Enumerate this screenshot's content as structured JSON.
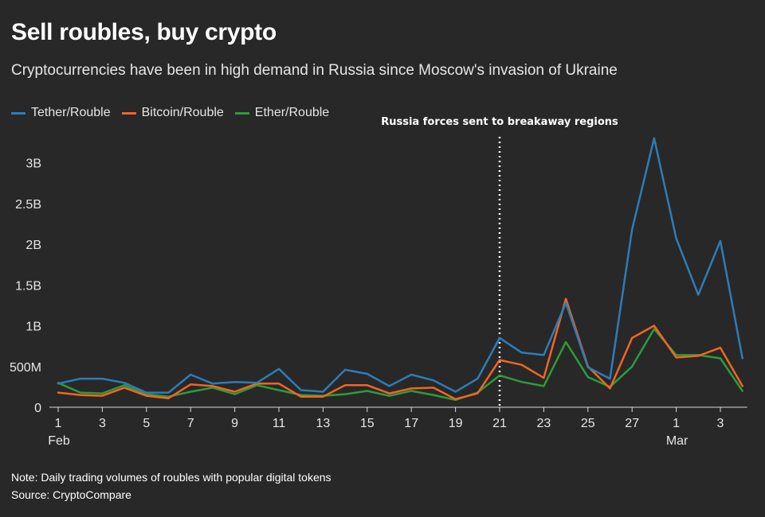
{
  "header": {
    "title": "Sell roubles, buy crypto",
    "subtitle": "Cryptocurrencies have been in high demand in Russia since Moscow's invasion of Ukraine"
  },
  "footer": {
    "note": "Note: Daily trading volumes of roubles with popular digital tokens",
    "source": "Source: CryptoCompare"
  },
  "chart_data": {
    "type": "line",
    "title": "Sell roubles, buy crypto",
    "xlabel": "",
    "ylabel": "",
    "ylim": [
      0,
      3.5
    ],
    "y_unit": "billions of roubles",
    "y_ticks": [
      0,
      0.5,
      1,
      1.5,
      2,
      2.5,
      3
    ],
    "y_tick_labels": [
      "0",
      "500M",
      "1B",
      "1.5B",
      "2B",
      "2.5B",
      "3B"
    ],
    "x": [
      "Feb 1",
      "Feb 2",
      "Feb 3",
      "Feb 4",
      "Feb 5",
      "Feb 6",
      "Feb 7",
      "Feb 8",
      "Feb 9",
      "Feb 10",
      "Feb 11",
      "Feb 12",
      "Feb 13",
      "Feb 14",
      "Feb 15",
      "Feb 16",
      "Feb 17",
      "Feb 18",
      "Feb 19",
      "Feb 20",
      "Feb 21",
      "Feb 22",
      "Feb 23",
      "Feb 24",
      "Feb 25",
      "Feb 26",
      "Feb 27",
      "Feb 28",
      "Mar 1",
      "Mar 2",
      "Mar 3",
      "Mar 4"
    ],
    "x_ticks": [
      {
        "index": 0,
        "label": "1",
        "month": "Feb"
      },
      {
        "index": 2,
        "label": "3"
      },
      {
        "index": 4,
        "label": "5"
      },
      {
        "index": 6,
        "label": "7"
      },
      {
        "index": 8,
        "label": "9"
      },
      {
        "index": 10,
        "label": "11"
      },
      {
        "index": 12,
        "label": "13"
      },
      {
        "index": 14,
        "label": "15"
      },
      {
        "index": 16,
        "label": "17"
      },
      {
        "index": 18,
        "label": "19"
      },
      {
        "index": 20,
        "label": "21"
      },
      {
        "index": 22,
        "label": "23"
      },
      {
        "index": 24,
        "label": "25"
      },
      {
        "index": 26,
        "label": "27"
      },
      {
        "index": 28,
        "label": "1",
        "month": "Mar"
      },
      {
        "index": 30,
        "label": "3"
      }
    ],
    "series": [
      {
        "name": "Tether/Rouble",
        "color": "#2e7cb8",
        "values": [
          0.29,
          0.35,
          0.35,
          0.3,
          0.18,
          0.18,
          0.4,
          0.29,
          0.31,
          0.3,
          0.47,
          0.21,
          0.19,
          0.46,
          0.41,
          0.26,
          0.4,
          0.33,
          0.19,
          0.35,
          0.85,
          0.67,
          0.64,
          1.28,
          0.49,
          0.35,
          2.18,
          3.3,
          2.07,
          1.38,
          2.04,
          0.6
        ]
      },
      {
        "name": "Bitcoin/Rouble",
        "color": "#f26522",
        "values": [
          0.18,
          0.15,
          0.14,
          0.24,
          0.14,
          0.11,
          0.28,
          0.26,
          0.19,
          0.29,
          0.29,
          0.13,
          0.13,
          0.27,
          0.27,
          0.17,
          0.23,
          0.24,
          0.1,
          0.17,
          0.58,
          0.52,
          0.36,
          1.33,
          0.5,
          0.23,
          0.85,
          1.0,
          0.61,
          0.63,
          0.73,
          0.26
        ]
      },
      {
        "name": "Ether/Rouble",
        "color": "#2a9d3a",
        "values": [
          0.3,
          0.18,
          0.17,
          0.27,
          0.16,
          0.13,
          0.19,
          0.24,
          0.16,
          0.27,
          0.21,
          0.15,
          0.14,
          0.16,
          0.2,
          0.14,
          0.2,
          0.15,
          0.09,
          0.18,
          0.39,
          0.31,
          0.26,
          0.8,
          0.37,
          0.25,
          0.5,
          0.96,
          0.64,
          0.64,
          0.6,
          0.2
        ]
      }
    ],
    "annotations": [
      {
        "index": 20,
        "label": "Russia forces sent to breakaway regions",
        "style": "dotted-vertical-line"
      }
    ],
    "legend": "top-left",
    "grid": false
  }
}
